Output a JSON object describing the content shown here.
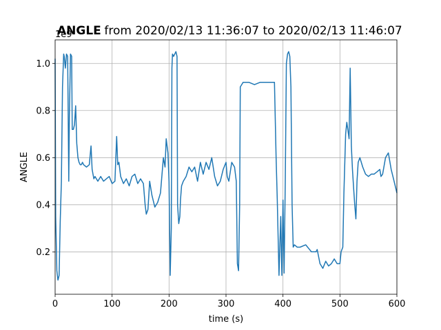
{
  "chart_data": {
    "type": "line",
    "title_bold": "ANGLE",
    "title_rest": " from 2020/02/13 11:36:07 to 2020/02/13 11:46:07",
    "xlabel": "time (s)",
    "ylabel": "ANGLE",
    "y_offset_text": "1e9",
    "xlim": [
      0,
      600
    ],
    "ylim": [
      0.02,
      1.1
    ],
    "x_ticks": [
      0,
      100,
      200,
      300,
      400,
      500,
      600
    ],
    "x_tick_labels": [
      "0",
      "100",
      "200",
      "300",
      "400",
      "500",
      "600"
    ],
    "y_ticks": [
      0.2,
      0.4,
      0.6,
      0.8,
      1.0
    ],
    "y_tick_labels": [
      "0.2",
      "0.4",
      "0.6",
      "0.8",
      "1.0"
    ],
    "grid": true,
    "series_color": "#1f77b4",
    "series": [
      {
        "x": [
          0,
          1,
          3,
          5,
          7,
          9,
          11,
          13,
          15,
          16,
          18,
          20,
          22,
          24,
          25,
          27,
          29,
          30,
          32,
          34,
          36,
          38,
          40,
          42,
          44,
          46,
          48,
          50,
          55,
          60,
          63,
          65,
          68,
          70,
          75,
          80,
          85,
          90,
          95,
          100,
          105,
          108,
          110,
          112,
          115,
          120,
          125,
          130,
          135,
          140,
          145,
          150,
          155,
          158,
          160,
          163,
          166,
          170,
          175,
          180,
          185,
          190,
          193,
          195,
          198,
          200,
          202,
          204,
          205,
          206,
          208,
          210,
          212,
          214,
          215,
          217,
          219,
          220,
          222,
          225,
          230,
          235,
          240,
          245,
          250,
          255,
          260,
          265,
          270,
          275,
          280,
          285,
          290,
          295,
          300,
          302,
          305,
          310,
          315,
          318,
          320,
          322,
          324,
          325,
          330,
          340,
          350,
          360,
          370,
          380,
          385,
          388,
          390,
          393,
          396,
          398,
          400,
          402,
          404,
          406,
          408,
          410,
          412,
          414,
          416,
          418,
          420,
          425,
          430,
          440,
          450,
          458,
          460,
          465,
          470,
          475,
          480,
          485,
          490,
          495,
          500,
          502,
          505,
          507,
          510,
          512,
          515,
          516,
          518,
          520,
          522,
          524,
          526,
          528,
          530,
          532,
          535,
          540,
          545,
          550,
          555,
          560,
          565,
          570,
          572,
          575,
          580,
          585,
          590,
          595,
          600
        ],
        "y": [
          1.02,
          0.35,
          0.12,
          0.08,
          0.1,
          0.33,
          0.5,
          0.9,
          1.04,
          1.03,
          0.98,
          1.04,
          1.03,
          0.5,
          0.78,
          1.04,
          1.03,
          0.72,
          0.72,
          0.74,
          0.82,
          0.66,
          0.6,
          0.58,
          0.57,
          0.57,
          0.58,
          0.57,
          0.56,
          0.57,
          0.65,
          0.55,
          0.51,
          0.52,
          0.5,
          0.52,
          0.5,
          0.51,
          0.52,
          0.49,
          0.5,
          0.69,
          0.57,
          0.58,
          0.52,
          0.49,
          0.51,
          0.48,
          0.52,
          0.53,
          0.49,
          0.51,
          0.49,
          0.4,
          0.36,
          0.38,
          0.5,
          0.44,
          0.39,
          0.41,
          0.45,
          0.6,
          0.56,
          0.68,
          0.62,
          0.5,
          0.1,
          0.3,
          0.98,
          1.04,
          1.03,
          1.04,
          1.05,
          1.03,
          0.4,
          0.32,
          0.35,
          0.42,
          0.48,
          0.5,
          0.52,
          0.56,
          0.54,
          0.56,
          0.5,
          0.58,
          0.53,
          0.58,
          0.55,
          0.6,
          0.52,
          0.48,
          0.5,
          0.55,
          0.58,
          0.52,
          0.5,
          0.58,
          0.56,
          0.5,
          0.15,
          0.12,
          0.4,
          0.9,
          0.92,
          0.92,
          0.91,
          0.92,
          0.92,
          0.92,
          0.92,
          0.6,
          0.42,
          0.1,
          0.35,
          0.1,
          0.42,
          0.11,
          0.5,
          1.0,
          1.04,
          1.05,
          1.03,
          0.9,
          0.4,
          0.22,
          0.23,
          0.22,
          0.22,
          0.23,
          0.2,
          0.2,
          0.21,
          0.15,
          0.13,
          0.16,
          0.14,
          0.15,
          0.17,
          0.15,
          0.15,
          0.2,
          0.22,
          0.45,
          0.7,
          0.75,
          0.7,
          0.68,
          0.98,
          0.65,
          0.55,
          0.47,
          0.4,
          0.34,
          0.5,
          0.58,
          0.6,
          0.56,
          0.53,
          0.52,
          0.53,
          0.53,
          0.54,
          0.55,
          0.52,
          0.53,
          0.6,
          0.62,
          0.55,
          0.5,
          0.45
        ]
      }
    ]
  }
}
